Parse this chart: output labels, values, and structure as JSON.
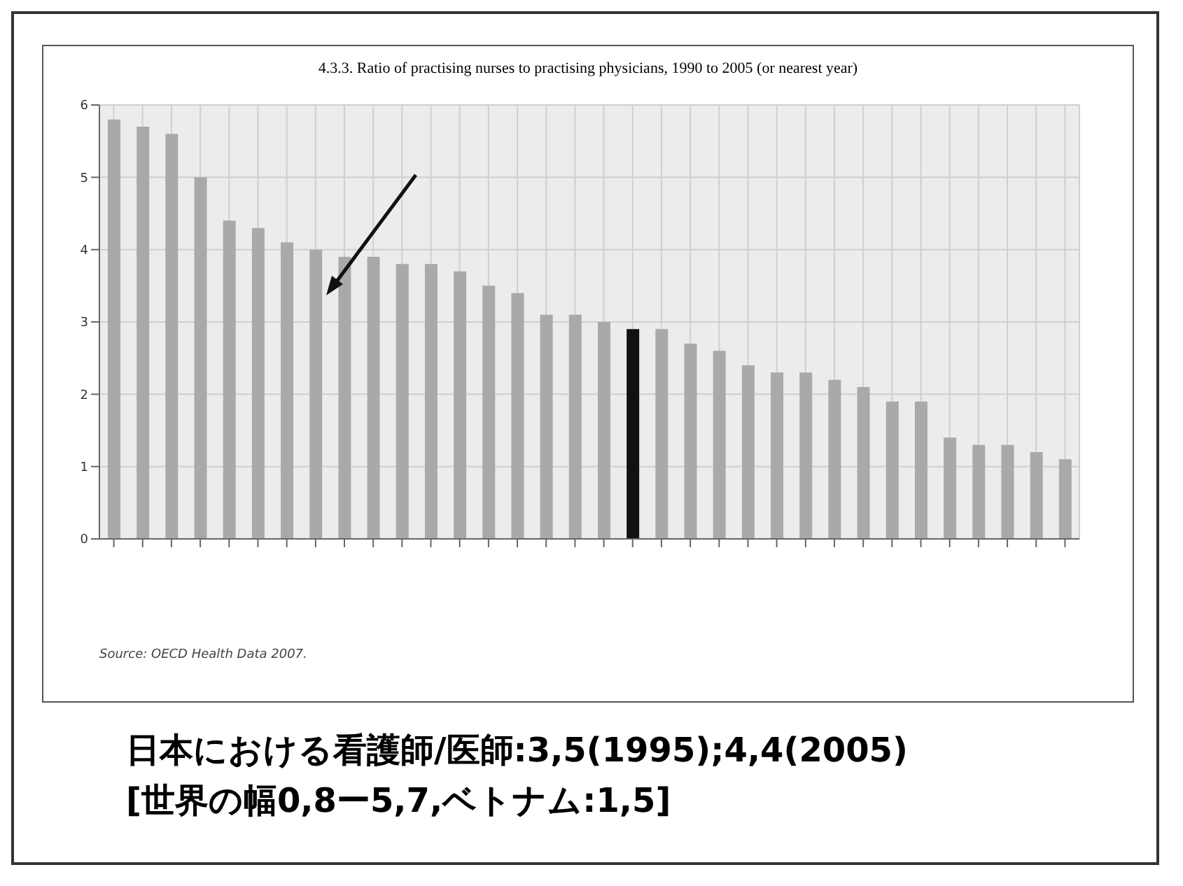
{
  "chart_data": {
    "type": "bar",
    "title": "4.3.3. Ratio of practising nurses to practising physicians, 1990 to 2005 (or nearest year)",
    "categories": [
      null,
      null,
      null,
      null,
      null,
      null,
      null,
      null,
      null,
      null,
      null,
      null,
      null,
      null,
      null,
      null,
      null,
      null,
      null,
      null,
      null,
      null,
      null,
      null,
      null,
      null,
      null,
      null,
      null,
      null,
      null,
      null,
      null,
      null
    ],
    "values": [
      5.8,
      5.7,
      5.6,
      5.0,
      4.4,
      4.3,
      4.1,
      4.0,
      3.9,
      3.9,
      3.8,
      3.8,
      3.7,
      3.5,
      3.4,
      3.1,
      3.1,
      3.0,
      2.9,
      2.9,
      2.7,
      2.6,
      2.4,
      2.3,
      2.3,
      2.2,
      2.1,
      1.9,
      1.9,
      1.4,
      1.3,
      1.3,
      1.2,
      1.1
    ],
    "colors": [
      "#a9a9a9",
      "#a9a9a9",
      "#a9a9a9",
      "#a9a9a9",
      "#a9a9a9",
      "#a9a9a9",
      "#a9a9a9",
      "#a9a9a9",
      "#a9a9a9",
      "#a9a9a9",
      "#a9a9a9",
      "#a9a9a9",
      "#a9a9a9",
      "#a9a9a9",
      "#a9a9a9",
      "#a9a9a9",
      "#a9a9a9",
      "#a9a9a9",
      "#111111",
      "#a9a9a9",
      "#a9a9a9",
      "#a9a9a9",
      "#a9a9a9",
      "#a9a9a9",
      "#a9a9a9",
      "#a9a9a9",
      "#a9a9a9",
      "#a9a9a9",
      "#a9a9a9",
      "#a9a9a9",
      "#a9a9a9",
      "#a9a9a9",
      "#a9a9a9",
      "#a9a9a9"
    ],
    "ylim": [
      0,
      6
    ],
    "yticks": [
      0,
      1,
      2,
      3,
      4,
      5,
      6
    ],
    "grid": true,
    "annotations": [
      "Source: OECD Health Data 2007.",
      "日本における看護師/医師:3,5(1995);4,4(2005)",
      "[世界の幅0,8ー5,7,ベトナム:1,5]"
    ]
  }
}
